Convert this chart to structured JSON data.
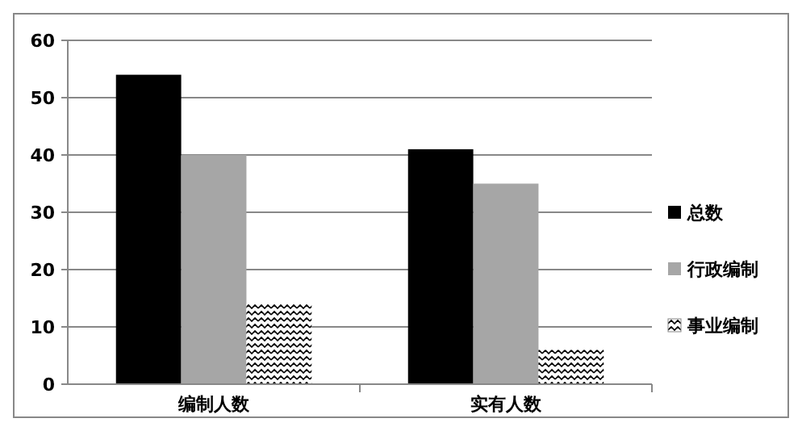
{
  "chart_data": {
    "type": "bar",
    "categories": [
      "编制人数",
      "实有人数"
    ],
    "series": [
      {
        "name": "总数",
        "color": "#000000",
        "values": [
          54,
          41
        ]
      },
      {
        "name": "行政编制",
        "color": "#a6a6a6",
        "values": [
          40,
          35
        ]
      },
      {
        "name": "事业编制",
        "color": "#000000",
        "values": [
          14,
          6
        ]
      }
    ],
    "ylim": [
      0,
      60
    ],
    "yticks": [
      0,
      10,
      20,
      30,
      40,
      50,
      60
    ],
    "grid": "y",
    "legend": "right"
  }
}
